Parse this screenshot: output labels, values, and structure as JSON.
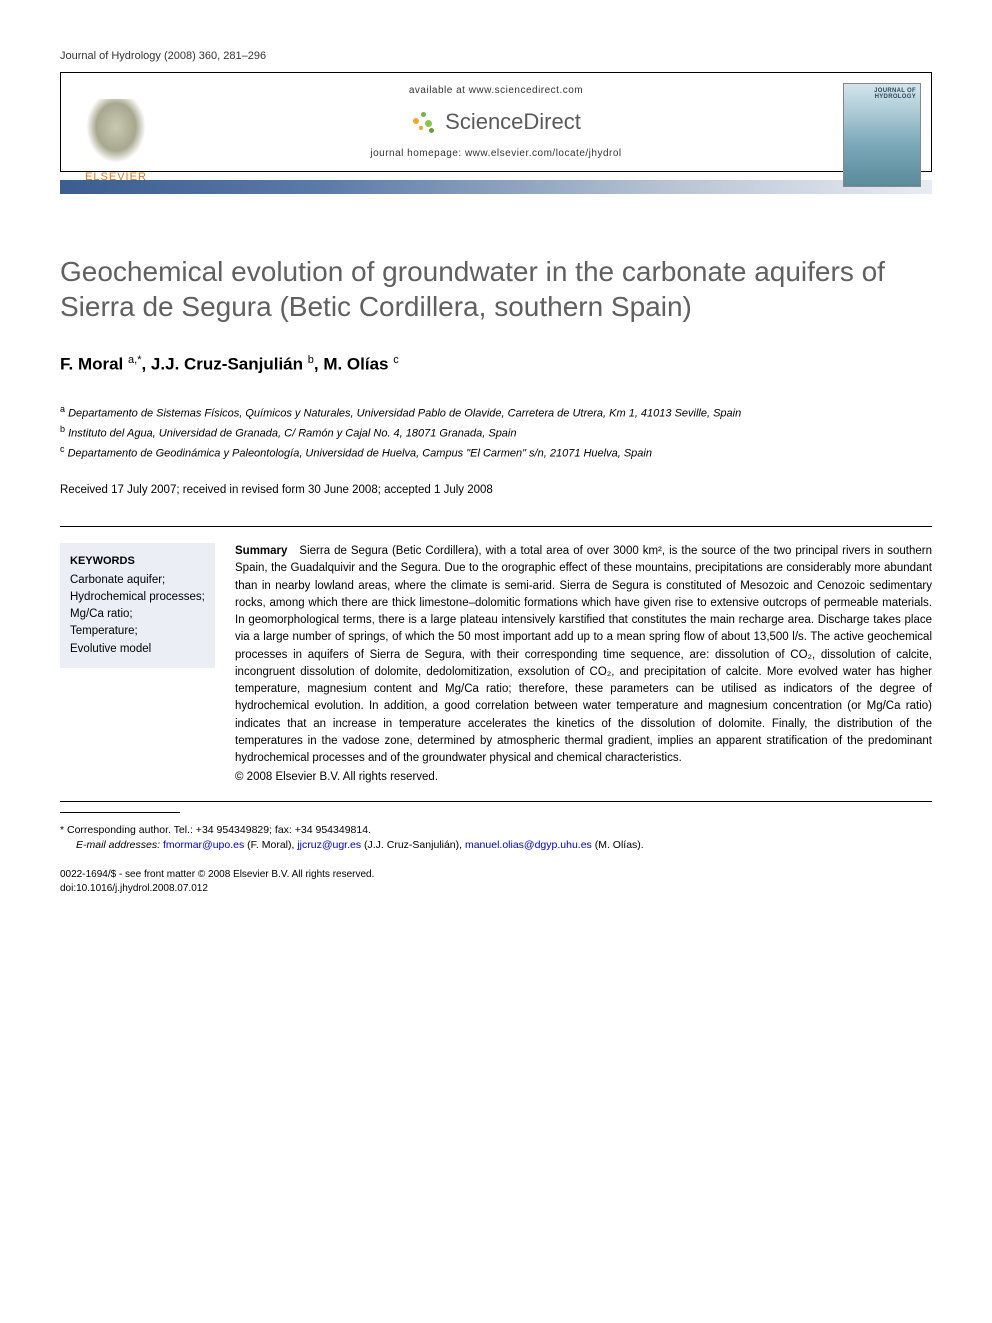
{
  "journal_reference": "Journal of Hydrology (2008) 360, 281–296",
  "header": {
    "available_at": "available at www.sciencedirect.com",
    "sciencedirect": "ScienceDirect",
    "homepage_label": "journal homepage: www.elsevier.com/locate/jhydrol",
    "publisher": "ELSEVIER",
    "cover_title": "JOURNAL OF HYDROLOGY"
  },
  "title": "Geochemical evolution of groundwater in the carbonate aquifers of Sierra de Segura (Betic Cordillera, southern Spain)",
  "authors_html": "F. Moral <sup>a,*</sup>, J.J. Cruz-Sanjulián <sup>b</sup>, M. Olías <sup>c</sup>",
  "affiliations": {
    "a": "Departamento de Sistemas Físicos, Químicos y Naturales, Universidad Pablo de Olavide, Carretera de Utrera, Km 1, 41013 Seville, Spain",
    "b": "Instituto del Agua, Universidad de Granada, C/ Ramón y Cajal No. 4, 18071 Granada, Spain",
    "c": "Departamento de Geodinámica y Paleontología, Universidad de Huelva, Campus \"El Carmen\" s/n, 21071 Huelva, Spain"
  },
  "dates": "Received 17 July 2007; received in revised form 30 June 2008; accepted 1 July 2008",
  "keywords_heading": "KEYWORDS",
  "keywords": "Carbonate aquifer;\nHydrochemical processes;\nMg/Ca ratio;\nTemperature;\nEvolutive model",
  "summary_label": "Summary",
  "summary_body": "Sierra de Segura (Betic Cordillera), with a total area of over 3000 km², is the source of the two principal rivers in southern Spain, the Guadalquivir and the Segura. Due to the orographic effect of these mountains, precipitations are considerably more abundant than in nearby lowland areas, where the climate is semi-arid. Sierra de Segura is constituted of Mesozoic and Cenozoic sedimentary rocks, among which there are thick limestone–dolomitic formations which have given rise to extensive outcrops of permeable materials. In geomorphological terms, there is a large plateau intensively karstified that constitutes the main recharge area. Discharge takes place via a large number of springs, of which the 50 most important add up to a mean spring flow of about 13,500 l/s. The active geochemical processes in aquifers of Sierra de Segura, with their corresponding time sequence, are: dissolution of CO₂, dissolution of calcite, incongruent dissolution of dolomite, dedolomitization, exsolution of CO₂, and precipitation of calcite. More evolved water has higher temperature, magnesium content and Mg/Ca ratio; therefore, these parameters can be utilised as indicators of the degree of hydrochemical evolution. In addition, a good correlation between water temperature and magnesium concentration (or Mg/Ca ratio) indicates that an increase in temperature accelerates the kinetics of the dissolution of dolomite. Finally, the distribution of the temperatures in the vadose zone, determined by atmospheric thermal gradient, implies an apparent stratification of the predominant hydrochemical processes and of the groundwater physical and chemical characteristics.",
  "copyright": "© 2008 Elsevier B.V. All rights reserved.",
  "corresponding": "* Corresponding author. Tel.: +34 954349829; fax: +34 954349814.",
  "email_label": "E-mail addresses:",
  "emails": [
    {
      "addr": "fmormar@upo.es",
      "who": "(F. Moral)"
    },
    {
      "addr": "jjcruz@ugr.es",
      "who": "(J.J. Cruz-Sanjulián)"
    },
    {
      "addr": "manuel.olias@dgyp.uhu.es",
      "who": "(M. Olías)."
    }
  ],
  "footer": {
    "issn": "0022-1694/$ - see front matter © 2008 Elsevier B.V. All rights reserved.",
    "doi": "doi:10.1016/j.jhydrol.2008.07.012"
  },
  "colors": {
    "title_gray": "#606060",
    "elsevier_orange": "#e67817",
    "link_blue": "#0000cc",
    "keywords_bg": "#ebeef4",
    "gradient_start": "#3b5d8f",
    "gradient_end": "#e8ecf2"
  }
}
